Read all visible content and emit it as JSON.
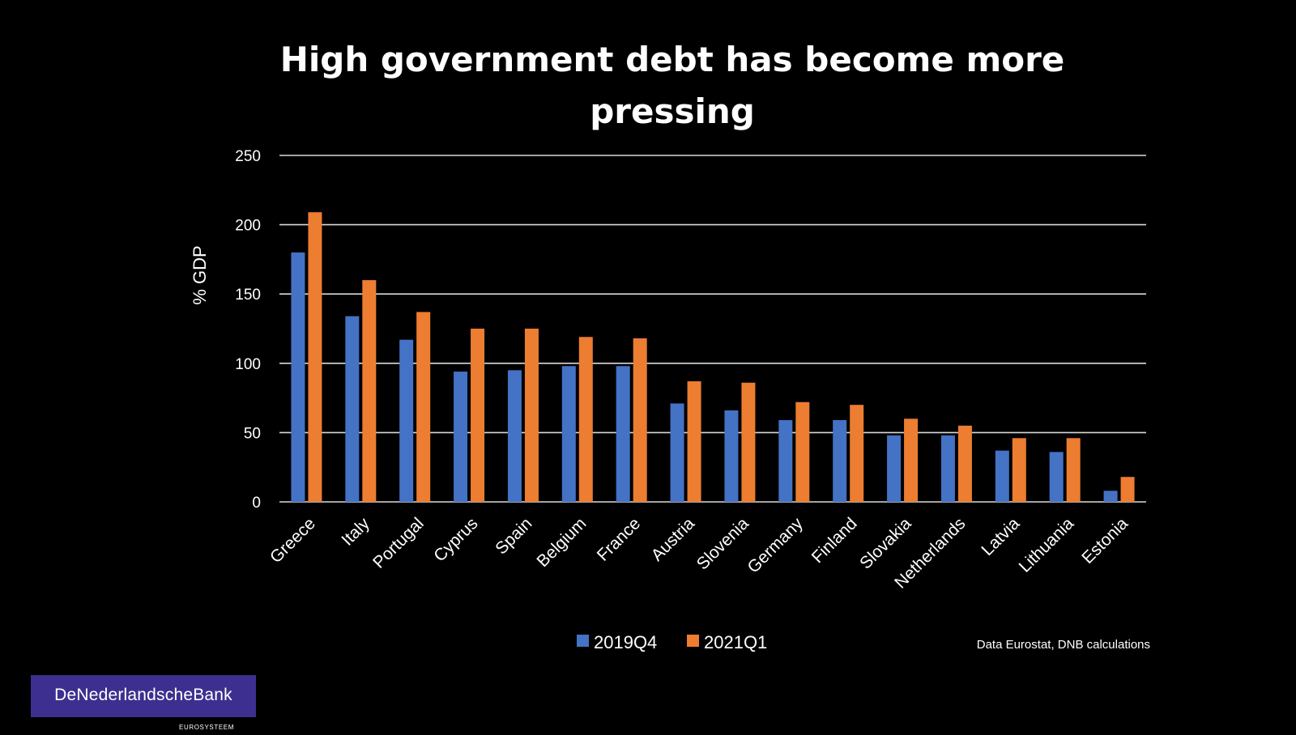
{
  "chart_data": {
    "type": "bar",
    "title_lines": [
      "High government debt has become more",
      "pressing"
    ],
    "xlabel": "",
    "ylabel": "% GDP",
    "ylim": [
      0,
      250
    ],
    "yticks": [
      0,
      50,
      100,
      150,
      200,
      250
    ],
    "grid": true,
    "legend_position": "bottom-center",
    "categories": [
      "Greece",
      "Italy",
      "Portugal",
      "Cyprus",
      "Spain",
      "Belgium",
      "France",
      "Austria",
      "Slovenia",
      "Germany",
      "Finland",
      "Slovakia",
      "Netherlands",
      "Latvia",
      "Lithuania",
      "Estonia"
    ],
    "series": [
      {
        "name": "2019Q4",
        "color": "#4472c4",
        "values": [
          180,
          134,
          117,
          94,
          95,
          98,
          98,
          71,
          66,
          59,
          59,
          48,
          48,
          37,
          36,
          8
        ]
      },
      {
        "name": "2021Q1",
        "color": "#ed7d31",
        "values": [
          209,
          160,
          137,
          125,
          125,
          119,
          118,
          87,
          86,
          72,
          70,
          60,
          55,
          46,
          46,
          18
        ]
      }
    ]
  },
  "source_note": "Data Eurostat, DNB calculations",
  "logo": {
    "name": "DeNederlandscheBank",
    "sub": "EUROSYSTEEM"
  },
  "colors": {
    "background": "#000000",
    "gridline": "#d9d9d9",
    "logo_bg": "#3d2f8f"
  }
}
